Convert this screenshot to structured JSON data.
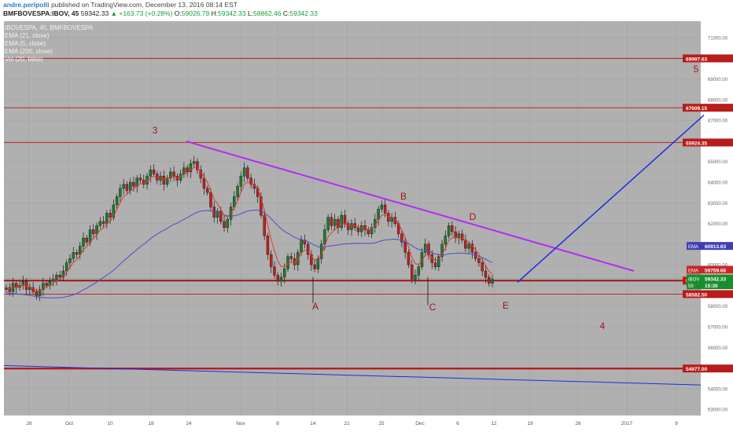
{
  "header": {
    "author": "andre.peripolli",
    "published": "published on TradingView.com, December 13, 2016 08:14 EST",
    "symbol": "BMFBOVESPA:IBOV, 45",
    "last": "59342.33",
    "change": "+163.73 (+0.28%)",
    "open_label": "O:",
    "open": "59026.79",
    "high_label": "H:",
    "high": "59342.33",
    "low_label": "L:",
    "low": "58862.46",
    "close_label": "C:",
    "close": "59342.33"
  },
  "legend": {
    "title": "IBOVESPA, 45, BMFBOVESPA",
    "items": [
      "EMA (21, close)",
      "EMA (5, close)",
      "EMA (200, close)",
      "Vol (20, false)"
    ]
  },
  "chart_data": {
    "type": "candlestick",
    "title": "",
    "xlabel": "",
    "ylabel": "",
    "ylim": [
      52700,
      71800
    ],
    "y_ticks": [
      53000,
      54000,
      55000,
      56000,
      57000,
      58000,
      59000,
      60000,
      61000,
      62000,
      63000,
      64000,
      65000,
      66000,
      67000,
      68000,
      69000,
      70000,
      71000
    ],
    "y_tick_labels": [
      "53000.00",
      "54000.00",
      "55000.00",
      "56000.00",
      "57000.00",
      "58000.00",
      "59000.00",
      "60000.00",
      "61000.00",
      "62000.00",
      "63000.00",
      "64000.00",
      "65000.00",
      "66000.00",
      "67000.00",
      "68000.00",
      "69000.00",
      "70000.00",
      "71000.00"
    ],
    "x_ticks": [
      "26",
      "Oct",
      "10",
      "18",
      "24",
      "Nov",
      "8",
      "14",
      "21",
      "25",
      "Dec",
      "6",
      "12",
      "19",
      "26",
      "2017",
      "9"
    ],
    "grid": true,
    "colors": {
      "background": "#b0b0b0",
      "up": "#1a7d2c",
      "down": "#c21f1f",
      "ema_fast": "#e0392b",
      "ema_200": "#4b4fc4",
      "trendline": "#b52cf2",
      "projection": "#1b2ee0",
      "hline": "#b81c1c"
    },
    "price_lines": [
      {
        "value": 69997.63,
        "label": "69997.63"
      },
      {
        "value": 67609.15,
        "label": "67609.15"
      },
      {
        "value": 65924.35,
        "label": "65924.35"
      },
      {
        "value": 58582.5,
        "label": "58582.50"
      },
      {
        "value": 54977.0,
        "label": "54977.00"
      }
    ],
    "support_line": {
      "value": 59235.11,
      "label": "59235.11"
    },
    "axis_badges": [
      {
        "text": "EMA",
        "value_label": "60913.63",
        "value": 60913.63,
        "color": "#3f3fb0"
      },
      {
        "text": "EMA",
        "value_label": "59759.66",
        "value": 59759.66,
        "color": "#c62828"
      },
      {
        "text": "IBOV",
        "value_label": "59342.33",
        "value": 59342.33,
        "color": "#1a8d2e"
      },
      {
        "text": "59",
        "value_label": "15:30",
        "value": 59010,
        "color": "#1a8d2e"
      }
    ],
    "wave_labels": [
      "3",
      "B",
      "D",
      "A",
      "C",
      "E",
      "4",
      "5"
    ],
    "price_series": [
      58900,
      58700,
      59100,
      58900,
      59000,
      59200,
      58800,
      58900,
      58700,
      58500,
      58800,
      59100,
      59000,
      59200,
      59300,
      59500,
      59400,
      59700,
      60100,
      60300,
      60600,
      60500,
      60900,
      61300,
      61100,
      61700,
      61500,
      61900,
      62100,
      62000,
      62500,
      62300,
      62900,
      63300,
      63700,
      63900,
      63600,
      64000,
      63800,
      64200,
      64100,
      63900,
      64300,
      64600,
      64400,
      64100,
      64300,
      63900,
      64200,
      64500,
      64300,
      64100,
      64400,
      64700,
      64500,
      64900,
      65000,
      64600,
      64200,
      63700,
      63500,
      62800,
      62300,
      62600,
      62100,
      61800,
      62200,
      62800,
      63300,
      63800,
      64300,
      64700,
      64200,
      63900,
      63700,
      63300,
      62400,
      61400,
      60500,
      59900,
      59500,
      59200,
      59400,
      59800,
      60400,
      60300,
      60000,
      60600,
      61200,
      61000,
      60500,
      60000,
      59800,
      60300,
      61000,
      61700,
      62300,
      61900,
      62200,
      61800,
      62400,
      62000,
      61700,
      62000,
      61800,
      61600,
      61900,
      61700,
      61500,
      61800,
      62200,
      62700,
      62900,
      62500,
      62100,
      62300,
      62000,
      61500,
      61100,
      60600,
      60000,
      59300,
      59500,
      59900,
      60600,
      61000,
      60500,
      60100,
      59900,
      60400,
      61000,
      61400,
      61900,
      61600,
      61300,
      61500,
      61200,
      60800,
      61000,
      60600,
      60300,
      60100,
      59700,
      59400,
      59100,
      59300
    ]
  }
}
